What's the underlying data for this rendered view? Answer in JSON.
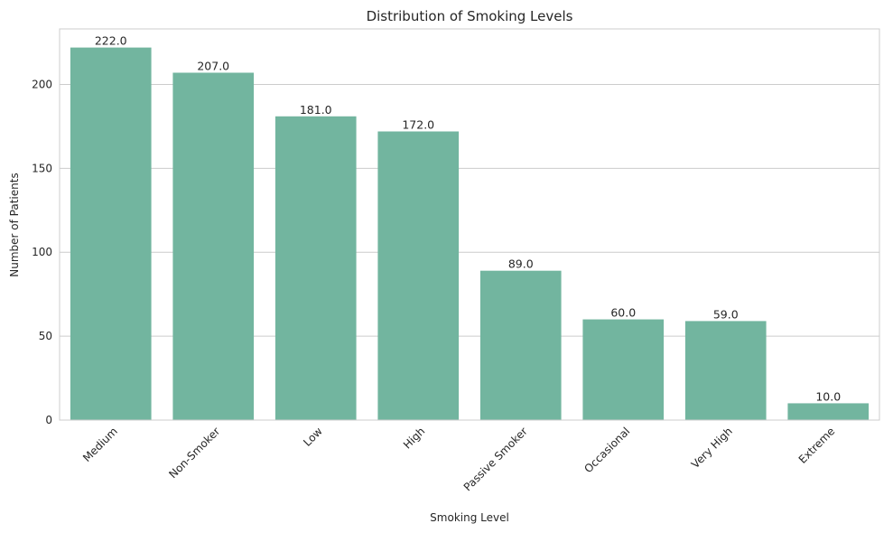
{
  "chart_data": {
    "type": "bar",
    "title": "Distribution of Smoking Levels",
    "xlabel": "Smoking Level",
    "ylabel": "Number of Patients",
    "categories": [
      "Medium",
      "Non-Smoker",
      "Low",
      "High",
      "Passive Smoker",
      "Occasional",
      "Very High",
      "Extreme"
    ],
    "values": [
      222,
      207,
      181,
      172,
      89,
      60,
      59,
      10
    ],
    "value_labels": [
      "222.0",
      "207.0",
      "181.0",
      "172.0",
      "89.0",
      "60.0",
      "59.0",
      "10.0"
    ],
    "ylim": [
      0,
      233.1
    ],
    "yticks": [
      0,
      50,
      100,
      150,
      200
    ],
    "grid": true,
    "bar_color": "#72b59f",
    "grid_color": "#cccccc"
  }
}
